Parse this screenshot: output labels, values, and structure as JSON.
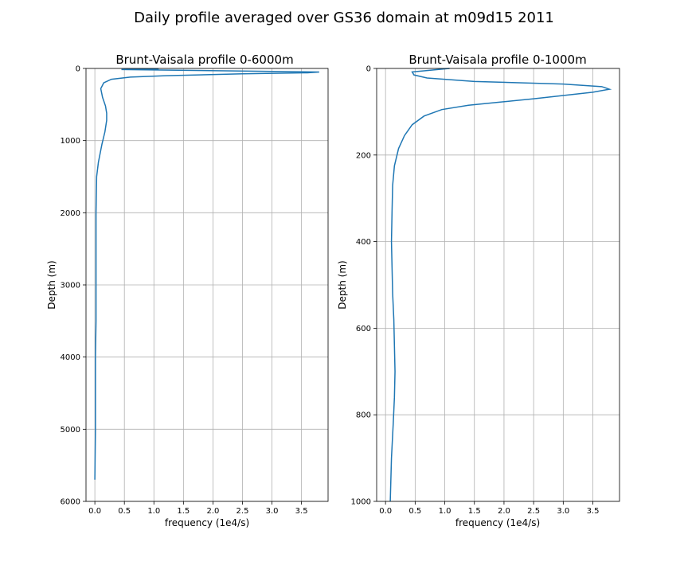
{
  "suptitle": "Daily profile averaged over GS36 domain at m09d15 2011",
  "chart_data": [
    {
      "type": "line",
      "title": "Brunt-Vaisala profile 0-6000m",
      "xlabel": "frequency (1e4/s)",
      "ylabel": "Depth (m)",
      "xlim": [
        -0.15,
        3.95
      ],
      "ylim": [
        6000,
        0
      ],
      "y_inverted": true,
      "grid": true,
      "xticks": [
        0.0,
        0.5,
        1.0,
        1.5,
        2.0,
        2.5,
        3.0,
        3.5
      ],
      "xtick_labels": [
        "0.0",
        "0.5",
        "1.0",
        "1.5",
        "2.0",
        "2.5",
        "3.0",
        "3.5"
      ],
      "yticks": [
        0,
        1000,
        2000,
        3000,
        4000,
        5000,
        6000
      ],
      "ytick_labels": [
        "0",
        "1000",
        "2000",
        "3000",
        "4000",
        "5000",
        "6000"
      ],
      "color": "#1f77b4",
      "series": [
        {
          "x": [
            1.08,
            0.45,
            3.8,
            3.6,
            2.5,
            1.2,
            0.6,
            0.28,
            0.15,
            0.1,
            0.13,
            0.18,
            0.2,
            0.2,
            0.17,
            0.12,
            0.06,
            0.03,
            0.02,
            0.02,
            0.02,
            0.02,
            0.01,
            0.01,
            0.0
          ],
          "y": [
            5,
            15,
            50,
            60,
            75,
            100,
            120,
            150,
            200,
            280,
            400,
            520,
            620,
            720,
            880,
            1050,
            1300,
            1500,
            2000,
            2500,
            3000,
            3500,
            4000,
            5000,
            5700
          ]
        }
      ]
    },
    {
      "type": "line",
      "title": "Brunt-Vaisala profile 0-1000m",
      "xlabel": "frequency (1e4/s)",
      "ylabel": "Depth (m)",
      "xlim": [
        -0.15,
        3.95
      ],
      "ylim": [
        1000,
        0
      ],
      "y_inverted": true,
      "grid": true,
      "xticks": [
        0.0,
        0.5,
        1.0,
        1.5,
        2.0,
        2.5,
        3.0,
        3.5
      ],
      "xtick_labels": [
        "0.0",
        "0.5",
        "1.0",
        "1.5",
        "2.0",
        "2.5",
        "3.0",
        "3.5"
      ],
      "yticks": [
        0,
        200,
        400,
        600,
        800,
        1000
      ],
      "ytick_labels": [
        "0",
        "200",
        "400",
        "600",
        "800",
        "1000"
      ],
      "color": "#1f77b4",
      "series": [
        {
          "x": [
            1.08,
            0.45,
            0.48,
            0.7,
            1.5,
            3.0,
            3.65,
            3.78,
            3.5,
            2.5,
            1.4,
            0.95,
            0.65,
            0.45,
            0.32,
            0.22,
            0.15,
            0.12,
            0.11,
            0.1,
            0.11,
            0.12,
            0.14,
            0.15,
            0.16,
            0.15,
            0.13,
            0.1,
            0.08
          ],
          "y": [
            0,
            8,
            15,
            22,
            30,
            36,
            42,
            48,
            55,
            70,
            85,
            95,
            110,
            130,
            155,
            185,
            225,
            270,
            330,
            400,
            460,
            520,
            580,
            640,
            700,
            760,
            820,
            900,
            1000
          ]
        }
      ]
    }
  ]
}
